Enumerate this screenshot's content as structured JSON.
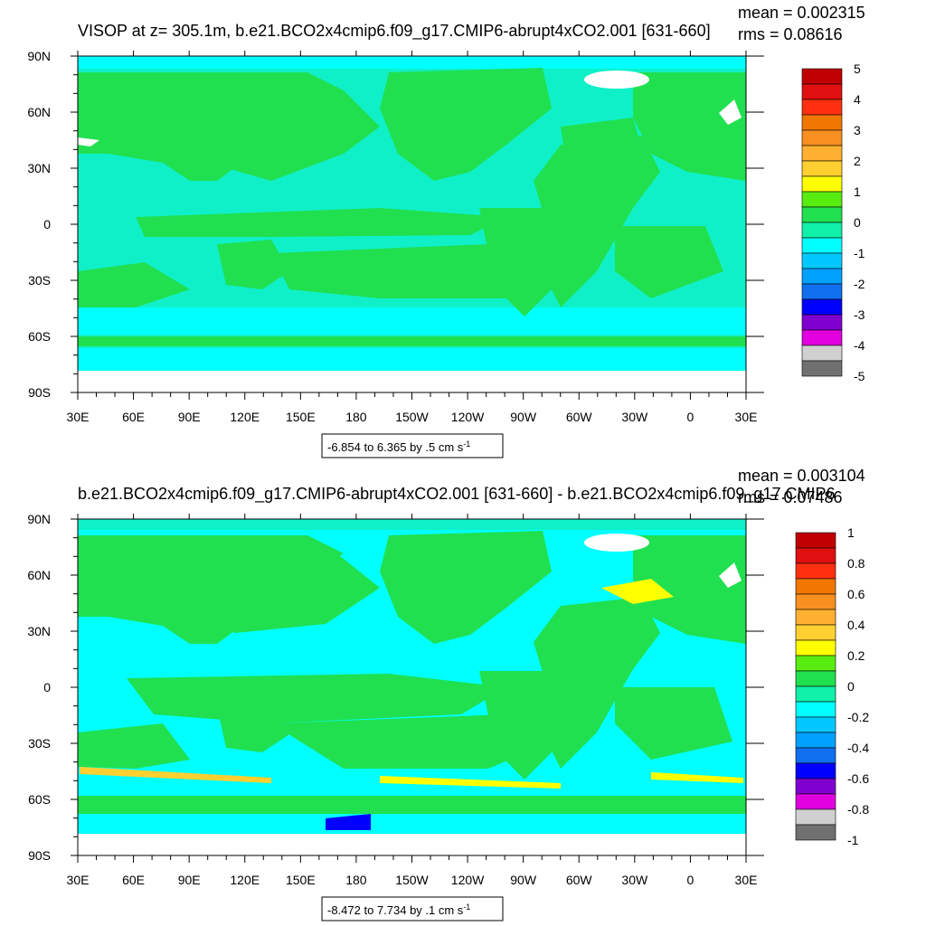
{
  "chart_data": [
    {
      "type": "heatmap",
      "title": "VISOP at z= 305.1m, b.e21.BCO2x4cmip6.f09_g17.CMIP6-abrupt4xCO2.001 [631-660]",
      "stats": {
        "mean": "mean = 0.002315",
        "rms": "rms = 0.08616"
      },
      "x_ticks": [
        "30E",
        "60E",
        "90E",
        "120E",
        "150E",
        "180",
        "150W",
        "120W",
        "90W",
        "60W",
        "30W",
        "0",
        "30E"
      ],
      "y_ticks": [
        "90N",
        "60N",
        "30N",
        "0",
        "30S",
        "60S",
        "90S"
      ],
      "colorbar": {
        "labels": [
          "5",
          "4",
          "3",
          "2",
          "1",
          "0",
          "-1",
          "-2",
          "-3",
          "-4",
          "-5"
        ],
        "colors": [
          "#C00000",
          "#E01010",
          "#FF3010",
          "#F07800",
          "#F89020",
          "#FFB030",
          "#FFD030",
          "#FFFF00",
          "#58EC10",
          "#20E050",
          "#10F0A8",
          "#00FFFF",
          "#00C8FF",
          "#00A0FF",
          "#1070F0",
          "#0000FF",
          "#8000D0",
          "#E000E0",
          "#D0D0D0",
          "#707070"
        ]
      },
      "range_label": "-6.854 to 6.365 by .5 cm s",
      "range_unit_exp": "-1"
    },
    {
      "type": "heatmap",
      "title": "b.e21.BCO2x4cmip6.f09_g17.CMIP6-abrupt4xCO2.001 [631-660] - b.e21.BCO2x4cmip6.f09_g17.CMIP6",
      "stats": {
        "mean": "mean = 0.003104",
        "rms": "rms = 0.07486"
      },
      "x_ticks": [
        "30E",
        "60E",
        "90E",
        "120E",
        "150E",
        "180",
        "150W",
        "120W",
        "90W",
        "60W",
        "30W",
        "0",
        "30E"
      ],
      "y_ticks": [
        "90N",
        "60N",
        "30N",
        "0",
        "30S",
        "60S",
        "90S"
      ],
      "colorbar": {
        "labels": [
          "1",
          "0.8",
          "0.6",
          "0.4",
          "0.2",
          "0",
          "-0.2",
          "-0.4",
          "-0.6",
          "-0.8",
          "-1"
        ],
        "colors": [
          "#C00000",
          "#E01010",
          "#FF3010",
          "#F07800",
          "#F89020",
          "#FFB030",
          "#FFD030",
          "#FFFF00",
          "#58EC10",
          "#20E050",
          "#10F0A8",
          "#00FFFF",
          "#00C8FF",
          "#00A0FF",
          "#1070F0",
          "#0000FF",
          "#8000D0",
          "#E000E0",
          "#D0D0D0",
          "#707070"
        ]
      },
      "range_label": "-8.472 to 7.734 by .1 cm s",
      "range_unit_exp": "-1"
    }
  ],
  "colors": {
    "land": "#20E050",
    "ocean_weak": "#10F0C8",
    "ocean_neg": "#00FFFF",
    "missing": "#ffffff"
  }
}
